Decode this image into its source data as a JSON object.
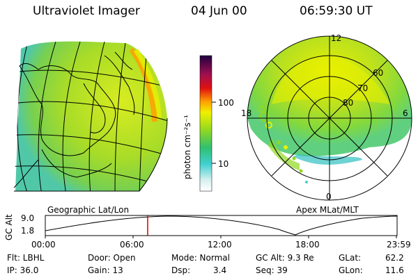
{
  "header": {
    "title": "Ultraviolet Imager",
    "date": "04 Jun 00",
    "time": "06:59:30 UT"
  },
  "colorbar": {
    "unit_label": "photon cm⁻²s⁻¹",
    "tick_100": "100",
    "tick_10": "10"
  },
  "left_panel": {
    "caption": "Geographic Lat/Lon"
  },
  "right_panel": {
    "caption": "Apex MLat/MLT",
    "mlt_12": "12",
    "mlt_18": "18",
    "mlt_6": "6",
    "mlt_0": "0",
    "lat_60": "60",
    "lat_70": "70",
    "lat_80": "80"
  },
  "timeline": {
    "axis_label": "GC Alt",
    "y_top": "9.0",
    "y_bottom": "1.8",
    "ticks": [
      "00:00",
      "06:00",
      "12:00",
      "18:00",
      "23:59"
    ],
    "current_fraction": 0.291
  },
  "footer": {
    "flt": "Flt: LBHL",
    "ip": "IP: 36.0",
    "door": "Door: Open",
    "gain": "Gain: 13",
    "mode": "Mode: Normal",
    "dsp_label": "Dsp:",
    "dsp_value": "3.4",
    "gcalt": "GC Alt: 9.3 Re",
    "seq": "Seq: 39",
    "glat_label": "GLat:",
    "glat_value": "62.2",
    "glon_label": "GLon:",
    "glon_value": "11.6"
  },
  "colors": {
    "aurora_green": "#9acd32",
    "trace_red": "#d20000"
  }
}
